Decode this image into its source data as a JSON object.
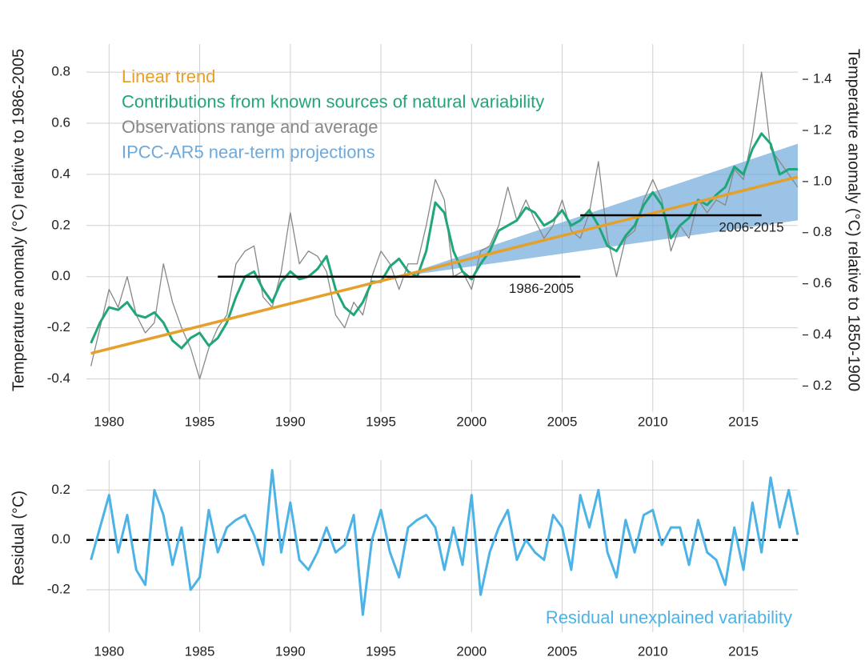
{
  "chart_data": [
    {
      "type": "line",
      "y_label": "Temperature anomaly (°C) relative to 1986-2005",
      "y2_label": "Temperature anomaly (°C) relative to 1850-1900",
      "xlim": [
        1978.75,
        2018.0
      ],
      "xticks": [
        1980,
        1985,
        1990,
        1995,
        2000,
        2005,
        2010,
        2015
      ],
      "ylim": [
        -0.53,
        0.91
      ],
      "yticks": [
        -0.4,
        -0.2,
        {
          "value": 0,
          "label": "0.0"
        },
        0.2,
        0.4,
        0.6,
        0.8
      ],
      "y2lim": [
        0.098,
        1.538
      ],
      "y2ticks": [
        0.2,
        0.4,
        0.6,
        0.8,
        {
          "value": 1,
          "label": "1.0"
        },
        1.2,
        1.4
      ],
      "grid": true,
      "x": [
        1979.0,
        1979.5,
        1980.0,
        1980.5,
        1981.0,
        1981.5,
        1982.0,
        1982.5,
        1983.0,
        1983.5,
        1984.0,
        1984.5,
        1985.0,
        1985.5,
        1986.0,
        1986.5,
        1987.0,
        1987.5,
        1988.0,
        1988.5,
        1989.0,
        1989.5,
        1990.0,
        1990.5,
        1991.0,
        1991.5,
        1992.0,
        1992.5,
        1993.0,
        1993.5,
        1994.0,
        1994.5,
        1995.0,
        1995.5,
        1996.0,
        1996.5,
        1997.0,
        1997.5,
        1998.0,
        1998.5,
        1999.0,
        1999.5,
        2000.0,
        2000.5,
        2001.0,
        2001.5,
        2002.0,
        2002.5,
        2003.0,
        2003.5,
        2004.0,
        2004.5,
        2005.0,
        2005.5,
        2006.0,
        2006.5,
        2007.0,
        2007.5,
        2008.0,
        2008.5,
        2009.0,
        2009.5,
        2010.0,
        2010.5,
        2011.0,
        2011.5,
        2012.0,
        2012.5,
        2013.0,
        2013.5,
        2014.0,
        2014.5,
        2015.0,
        2015.5,
        2016.0,
        2016.5,
        2017.0,
        2017.5,
        2018.0
      ],
      "series": [
        {
          "name": "Linear trend",
          "color": "#e69f28",
          "x": [
            1979,
            2018
          ],
          "values": [
            -0.3,
            0.39
          ]
        },
        {
          "name": "Contributions from known sources of natural variability",
          "color": "#1fa67a",
          "values": [
            -0.26,
            -0.18,
            -0.12,
            -0.13,
            -0.1,
            -0.15,
            -0.16,
            -0.14,
            -0.18,
            -0.25,
            -0.28,
            -0.24,
            -0.22,
            -0.27,
            -0.24,
            -0.18,
            -0.08,
            0.0,
            0.02,
            -0.05,
            -0.1,
            -0.02,
            0.02,
            -0.01,
            0.0,
            0.03,
            0.08,
            -0.05,
            -0.12,
            -0.15,
            -0.1,
            -0.02,
            -0.02,
            0.04,
            0.07,
            0.02,
            0.0,
            0.1,
            0.29,
            0.25,
            0.1,
            0.02,
            -0.01,
            0.05,
            0.1,
            0.18,
            0.2,
            0.22,
            0.27,
            0.25,
            0.2,
            0.22,
            0.26,
            0.2,
            0.22,
            0.26,
            0.2,
            0.12,
            0.1,
            0.16,
            0.2,
            0.28,
            0.33,
            0.28,
            0.15,
            0.2,
            0.23,
            0.3,
            0.28,
            0.32,
            0.35,
            0.43,
            0.4,
            0.5,
            0.56,
            0.52,
            0.4,
            0.42,
            0.42
          ]
        },
        {
          "name": "Observations range and average",
          "color": "#888888",
          "values": [
            -0.35,
            -0.2,
            -0.05,
            -0.12,
            0.0,
            -0.15,
            -0.22,
            -0.18,
            0.05,
            -0.1,
            -0.2,
            -0.28,
            -0.4,
            -0.28,
            -0.2,
            -0.15,
            0.05,
            0.1,
            0.12,
            -0.08,
            -0.12,
            0.02,
            0.25,
            0.05,
            0.1,
            0.08,
            0.02,
            -0.15,
            -0.2,
            -0.1,
            -0.15,
            0.0,
            0.1,
            0.05,
            -0.05,
            0.05,
            0.05,
            0.2,
            0.38,
            0.3,
            0.0,
            0.02,
            -0.05,
            0.1,
            0.12,
            0.2,
            0.35,
            0.22,
            0.3,
            0.22,
            0.15,
            0.2,
            0.3,
            0.18,
            0.15,
            0.25,
            0.45,
            0.15,
            0.0,
            0.15,
            0.18,
            0.3,
            0.38,
            0.3,
            0.1,
            0.2,
            0.15,
            0.3,
            0.25,
            0.3,
            0.28,
            0.42,
            0.38,
            0.55,
            0.8,
            0.5,
            0.45,
            0.4,
            0.35
          ]
        },
        {
          "name": "IPCC-AR5 near-term projections",
          "color": "#6fa9da",
          "x": [
            1996,
            2018
          ],
          "lower": [
            0.0,
            0.22
          ],
          "upper": [
            0.0,
            0.52
          ]
        }
      ],
      "annotations": [
        {
          "label": "1986-2005",
          "x": [
            1986,
            2006
          ],
          "value": 0
        },
        {
          "label": "2006-2015",
          "x": [
            2006,
            2016
          ],
          "value": 0.24
        }
      ]
    },
    {
      "type": "line",
      "y_label": "Residual (°C)",
      "xlim": [
        1978.75,
        2018.0
      ],
      "xticks": [
        1980,
        1985,
        1990,
        1995,
        2000,
        2005,
        2010,
        2015
      ],
      "ylim": [
        -0.37,
        0.32
      ],
      "yticks": [
        -0.2,
        {
          "value": 0,
          "label": "0.0"
        },
        0.2
      ],
      "grid": true,
      "reference_line": 0,
      "x": [
        1979.0,
        1979.5,
        1980.0,
        1980.5,
        1981.0,
        1981.5,
        1982.0,
        1982.5,
        1983.0,
        1983.5,
        1984.0,
        1984.5,
        1985.0,
        1985.5,
        1986.0,
        1986.5,
        1987.0,
        1987.5,
        1988.0,
        1988.5,
        1989.0,
        1989.5,
        1990.0,
        1990.5,
        1991.0,
        1991.5,
        1992.0,
        1992.5,
        1993.0,
        1993.5,
        1994.0,
        1994.5,
        1995.0,
        1995.5,
        1996.0,
        1996.5,
        1997.0,
        1997.5,
        1998.0,
        1998.5,
        1999.0,
        1999.5,
        2000.0,
        2000.5,
        2001.0,
        2001.5,
        2002.0,
        2002.5,
        2003.0,
        2003.5,
        2004.0,
        2004.5,
        2005.0,
        2005.5,
        2006.0,
        2006.5,
        2007.0,
        2007.5,
        2008.0,
        2008.5,
        2009.0,
        2009.5,
        2010.0,
        2010.5,
        2011.0,
        2011.5,
        2012.0,
        2012.5,
        2013.0,
        2013.5,
        2014.0,
        2014.5,
        2015.0,
        2015.5,
        2016.0,
        2016.5,
        2017.0,
        2017.5,
        2018.0
      ],
      "series": [
        {
          "name": "Residual unexplained variability",
          "color": "#4db3e6",
          "values": [
            -0.08,
            0.05,
            0.18,
            -0.05,
            0.1,
            -0.12,
            -0.18,
            0.2,
            0.1,
            -0.1,
            0.05,
            -0.2,
            -0.15,
            0.12,
            -0.05,
            0.05,
            0.08,
            0.1,
            0.02,
            -0.1,
            0.28,
            -0.05,
            0.15,
            -0.08,
            -0.12,
            -0.05,
            0.05,
            -0.05,
            -0.02,
            0.1,
            -0.3,
            0.0,
            0.12,
            -0.05,
            -0.15,
            0.05,
            0.08,
            0.1,
            0.05,
            -0.12,
            0.05,
            -0.1,
            0.18,
            -0.22,
            -0.05,
            0.05,
            0.12,
            -0.08,
            0.0,
            -0.05,
            -0.08,
            0.1,
            0.05,
            -0.12,
            0.18,
            0.05,
            0.2,
            -0.05,
            -0.15,
            0.08,
            -0.05,
            0.1,
            0.12,
            -0.02,
            0.05,
            0.05,
            -0.1,
            0.08,
            -0.05,
            -0.08,
            -0.18,
            0.05,
            -0.12,
            0.15,
            -0.05,
            0.25,
            0.05,
            0.2,
            0.02
          ]
        }
      ]
    }
  ]
}
